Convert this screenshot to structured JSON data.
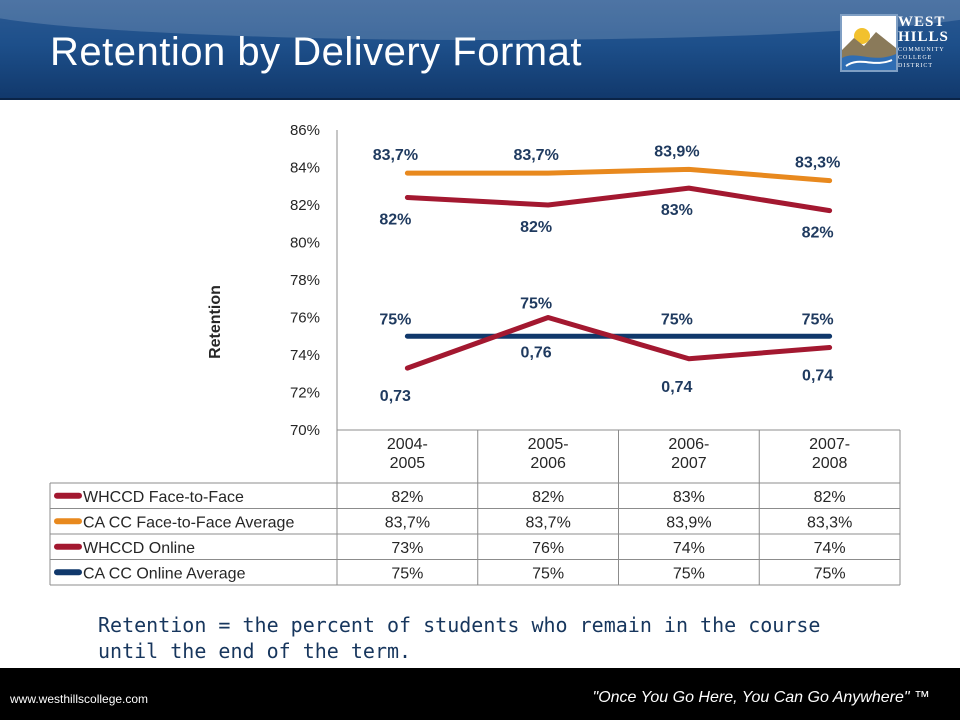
{
  "header": {
    "title": "Retention by Delivery Format"
  },
  "logo": {
    "line1": "WEST",
    "line2": "HILLS",
    "line3": "COMMUNITY",
    "line4": "COLLEGE",
    "line5": "DISTRICT"
  },
  "colors": {
    "whccd": "#a31830",
    "ca_f2f": "#e8891e",
    "ca_online": "#10386b",
    "header_blue": "#1d4f8a"
  },
  "chart_data": {
    "type": "line",
    "ylabel": "Retention",
    "ylim": [
      0.7,
      0.86
    ],
    "y_ticks": [
      "86%",
      "84%",
      "82%",
      "80%",
      "78%",
      "76%",
      "74%",
      "72%",
      "70%"
    ],
    "categories": [
      "2004-\n2005",
      "2005-\n2006",
      "2006-\n2007",
      "2007-\n2008"
    ],
    "series": [
      {
        "name": "WHCCD Face-to-Face",
        "color": "#a31830",
        "values": [
          0.824,
          0.82,
          0.829,
          0.817
        ],
        "labels": [
          "82%",
          "82%",
          "83%",
          "82%"
        ],
        "table": [
          "82%",
          "82%",
          "83%",
          "82%"
        ]
      },
      {
        "name": "CA CC Face-to-Face Average",
        "color": "#e8891e",
        "values": [
          0.837,
          0.837,
          0.839,
          0.833
        ],
        "labels": [
          "83,7%",
          "83,7%",
          "83,9%",
          "83,3%"
        ],
        "table": [
          "83,7%",
          "83,7%",
          "83,9%",
          "83,3%"
        ]
      },
      {
        "name": "WHCCD Online",
        "color": "#a31830",
        "values": [
          0.733,
          0.76,
          0.738,
          0.744
        ],
        "labels": [
          "0,73",
          "0,76",
          "0,74",
          "0,74"
        ],
        "table": [
          "73%",
          "76%",
          "74%",
          "74%"
        ]
      },
      {
        "name": "CA CC Online Average",
        "color": "#10386b",
        "values": [
          0.75,
          0.75,
          0.75,
          0.75
        ],
        "labels": [
          "75%",
          "75%",
          "75%",
          "75%"
        ],
        "table": [
          "75%",
          "75%",
          "75%",
          "75%"
        ]
      }
    ]
  },
  "definition": "Retention = the percent of students who remain in the course until the end of the term.",
  "footer": {
    "url": "www.westhillscollege.com",
    "slogan": "\"Once You Go Here, You Can Go Anywhere\" ™"
  }
}
